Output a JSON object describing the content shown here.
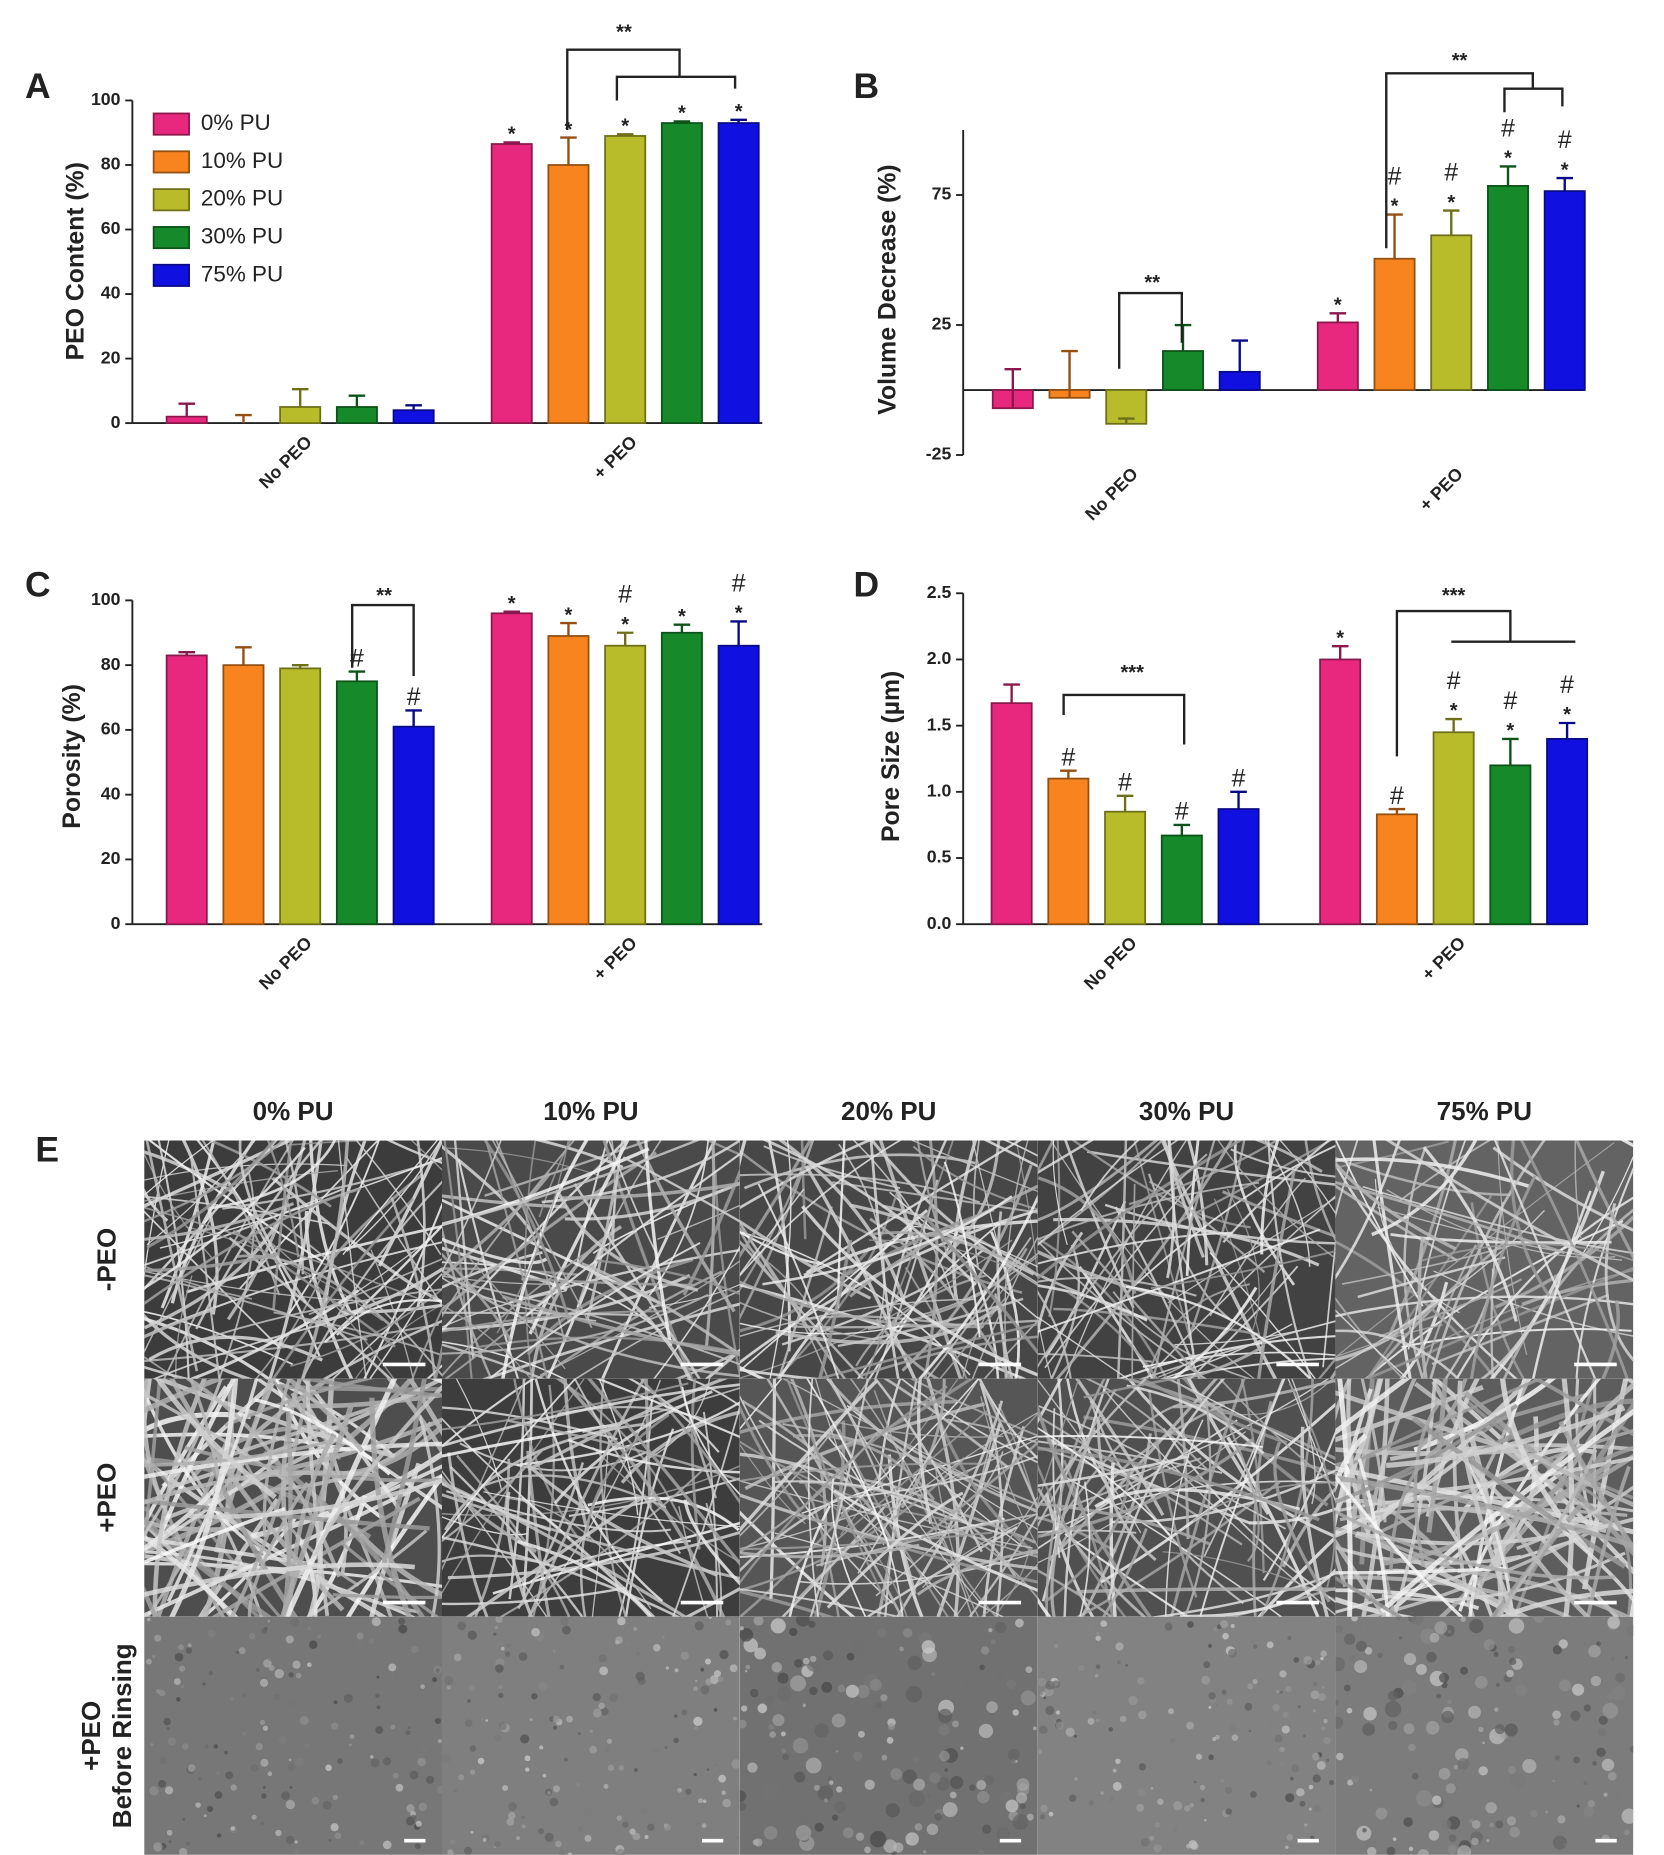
{
  "chart_data": [
    {
      "type": "bar",
      "panel": "A",
      "y_label": "PEO  Content (%)",
      "categories": [
        "No PEO",
        "+ PEO"
      ],
      "ylim": [
        0,
        100
      ],
      "yticks": [
        0,
        20,
        40,
        60,
        80,
        100
      ],
      "legend": "upper left",
      "series": [
        {
          "name": "0% PU",
          "color": "#e8287f",
          "values": [
            2,
            86.5
          ],
          "errors": [
            4,
            0.5
          ],
          "marks": [
            null,
            [
              "*"
            ]
          ]
        },
        {
          "name": "10% PU",
          "color": "#f7841e",
          "values": [
            0,
            80
          ],
          "errors": [
            2.5,
            8.5
          ],
          "marks": [
            null,
            [
              "*"
            ]
          ]
        },
        {
          "name": "20% PU",
          "color": "#b8bb2a",
          "values": [
            5,
            89
          ],
          "errors": [
            5.5,
            0.5
          ],
          "marks": [
            null,
            [
              "*"
            ]
          ]
        },
        {
          "name": "30% PU",
          "color": "#168a2a",
          "values": [
            5,
            93
          ],
          "errors": [
            3.5,
            0.5
          ],
          "marks": [
            null,
            [
              "*"
            ]
          ]
        },
        {
          "name": "75% PU",
          "color": "#1010e0",
          "values": [
            4,
            93
          ],
          "errors": [
            1.5,
            1
          ],
          "marks": [
            null,
            [
              "*"
            ]
          ]
        }
      ],
      "brackets": [
        "**"
      ]
    },
    {
      "type": "bar",
      "panel": "B",
      "y_label": "Volume  Decrease  (%)",
      "categories": [
        "No PEO",
        "+ PEO"
      ],
      "ylim": [
        -25,
        100
      ],
      "yticks": [
        -25,
        25,
        75
      ],
      "series": [
        {
          "color": "#e8287f",
          "values": [
            -7,
            26
          ],
          "errors": [
            15,
            3.5
          ],
          "marks": [
            null,
            [
              "*"
            ]
          ]
        },
        {
          "color": "#f7841e",
          "values": [
            -3,
            50.5
          ],
          "errors": [
            18,
            17
          ],
          "marks": [
            null,
            [
              "#",
              "*"
            ]
          ]
        },
        {
          "color": "#b8bb2a",
          "values": [
            -13,
            59.5
          ],
          "errors": [
            2,
            9.5
          ],
          "marks": [
            null,
            [
              "#",
              "*"
            ]
          ]
        },
        {
          "color": "#168a2a",
          "values": [
            15,
            78.5
          ],
          "errors": [
            10,
            7.5
          ],
          "marks": [
            null,
            [
              "#",
              "*"
            ]
          ]
        },
        {
          "color": "#1010e0",
          "values": [
            7,
            76.5
          ],
          "errors": [
            12,
            5
          ],
          "marks": [
            null,
            [
              "#",
              "*"
            ]
          ]
        }
      ],
      "brackets": [
        "**",
        "**"
      ]
    },
    {
      "type": "bar",
      "panel": "C",
      "y_label": "Porosity  (%)",
      "categories": [
        "No PEO",
        "+ PEO"
      ],
      "ylim": [
        0,
        100
      ],
      "yticks": [
        0,
        20,
        40,
        60,
        80,
        100
      ],
      "series": [
        {
          "color": "#e8287f",
          "values": [
            83,
            96
          ],
          "errors": [
            1,
            0.5
          ],
          "marks": [
            null,
            [
              "*"
            ]
          ]
        },
        {
          "color": "#f7841e",
          "values": [
            80,
            89
          ],
          "errors": [
            5.5,
            4
          ],
          "marks": [
            null,
            [
              "*"
            ]
          ]
        },
        {
          "color": "#b8bb2a",
          "values": [
            79,
            86
          ],
          "errors": [
            1,
            4
          ],
          "marks": [
            null,
            [
              "#",
              "*"
            ]
          ]
        },
        {
          "color": "#168a2a",
          "values": [
            75,
            90
          ],
          "errors": [
            3,
            2.5
          ],
          "marks": [
            [
              "#"
            ],
            [
              "*"
            ]
          ]
        },
        {
          "color": "#1010e0",
          "values": [
            61,
            86
          ],
          "errors": [
            5,
            7.5
          ],
          "marks": [
            [
              "#"
            ],
            [
              "#",
              "*"
            ]
          ]
        }
      ],
      "brackets": [
        "**"
      ]
    },
    {
      "type": "bar",
      "panel": "D",
      "y_label": "Pore Size (µm)",
      "categories": [
        "No PEO",
        "+ PEO"
      ],
      "ylim": [
        0,
        2.5
      ],
      "yticks": [
        {
          "value": 0,
          "label": "0.0"
        },
        0.5,
        {
          "value": 1,
          "label": "1.0"
        },
        1.5,
        {
          "value": 2,
          "label": "2.0"
        },
        2.5
      ],
      "series": [
        {
          "color": "#e8287f",
          "values": [
            1.67,
            2.0
          ],
          "errors": [
            0.14,
            0.1
          ],
          "marks": [
            null,
            [
              "*"
            ]
          ]
        },
        {
          "color": "#f7841e",
          "values": [
            1.1,
            0.83
          ],
          "errors": [
            0.06,
            0.04
          ],
          "marks": [
            [
              "#"
            ],
            [
              "#"
            ]
          ]
        },
        {
          "color": "#b8bb2a",
          "values": [
            0.85,
            1.45
          ],
          "errors": [
            0.12,
            0.1
          ],
          "marks": [
            [
              "#"
            ],
            [
              "#",
              "*"
            ]
          ]
        },
        {
          "color": "#168a2a",
          "values": [
            0.67,
            1.2
          ],
          "errors": [
            0.08,
            0.2
          ],
          "marks": [
            [
              "#"
            ],
            [
              "#",
              "*"
            ]
          ]
        },
        {
          "color": "#1010e0",
          "values": [
            0.87,
            1.4
          ],
          "errors": [
            0.13,
            0.12
          ],
          "marks": [
            [
              "#"
            ],
            [
              "#",
              "*"
            ]
          ]
        }
      ],
      "brackets": [
        "***",
        "***"
      ]
    }
  ],
  "panel_e": {
    "label": "E",
    "columns": [
      "0% PU",
      "10% PU",
      "20% PU",
      "30% PU",
      "75% PU"
    ],
    "rows": [
      [
        "-PEO"
      ],
      [
        "+PEO"
      ],
      [
        "+PEO",
        "Before Rinsing"
      ]
    ]
  }
}
